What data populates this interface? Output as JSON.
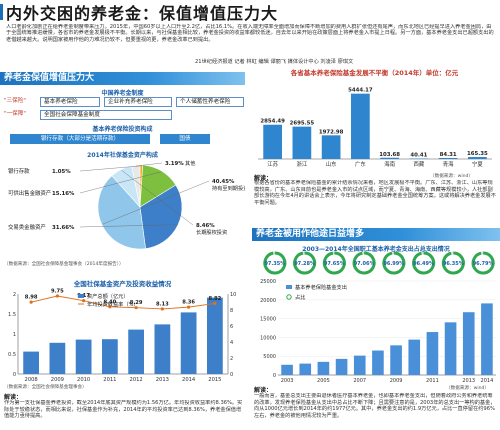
{
  "headline": "内外交困的养老金：保值增值压力大",
  "intro": "人口老龄化加剧正在给养老金制度带来压力。2015年，中国60岁以上人口升至2.2亿，占比16.1%。在收入端无障率全面增加而保障不断增加的费用人群扩张但还有尾声，而东北地区已经提早进入养老金困局，由于全国统筹推进缓慢，各省市的养老金发展极不平衡。长期以来，与社保基金相比较，养老金投资的收益率都较低迷，自去年以来开始在政策层面上将养老金入市提上日程。另一方面，基本养老金支出已超额支出的老借越来越大。说明国家被用作他的力难况仍较不，但要重视的更，养老金改革已到提出。",
  "byline": "21世纪经济报道 记者 林虹 编辑 谭丽飞 媒体设计中心 刘凌泽 廖琪文",
  "left": {
    "band_title": "养老金保值增值压力大",
    "system_title": "中国养老金制度",
    "pillar1_tag": "\"三保险\"",
    "pillar1_boxes": [
      "基本养老保险",
      "企业补充养老保险",
      "个人储蓄性养老保险"
    ],
    "pillar2_tag": "\"一保障\"",
    "pillar2_box": "全国社会保障基金制度",
    "invest_title": "基本养老保险投资构成",
    "invest_boxes": [
      "银行存款（大部分是活期存款）",
      "国债"
    ],
    "pie_title": "2014年社保基金资产构成",
    "pie_slices": [
      {
        "label": "银行存款",
        "value": 1.05,
        "pct": "1.05%",
        "color": "#f2a81e"
      },
      {
        "label": "可供出售金融资产",
        "value": 15.16,
        "pct": "15.16%",
        "color": "#7dbf3f"
      },
      {
        "label": "交易类金融资产",
        "value": 31.66,
        "pct": "31.66%",
        "color": "#3d7fc9"
      },
      {
        "label": "持有至到期投资",
        "value": 40.45,
        "pct": "40.45%",
        "color": "#8fc6ea"
      },
      {
        "label": "长期股权投资",
        "value": 8.46,
        "pct": "8.46%",
        "color": "#c9e6f7"
      },
      {
        "label": "其他",
        "value": 3.19,
        "pct": "3.19%",
        "color": "#e8e8e8"
      }
    ],
    "pie_other_text": "其他",
    "pie_source": "（数据来源：全国社会保障基金理事会（2014年度报告））",
    "combo_title": "全国社保基金资产及投资收益情况",
    "combo_source": "（数据来源：全国社会保障基金理事会）",
    "note_head": "解读：",
    "note": "作为第一支社保基金养老投资，截至2014年底其资产规模约为1.56万亿。年均投资收益率约8.36%。实际处于较稳状态，而相比来说，社保基金作为补充，2014年的平均投资率已达到8.36%，养老金保值增值能力亟待提高。"
  },
  "chart_data": [
    {
      "type": "bar",
      "title": "各省基本养老保险基金发展不平衡（2014年）单位：亿元",
      "categories": [
        "江苏",
        "浙江",
        "山东",
        "广东",
        "海南",
        "西藏",
        "青海",
        "宁夏"
      ],
      "values": [
        2854.49,
        2695.55,
        1972.98,
        5444.17,
        103.68,
        40.41,
        84.31,
        165.35
      ],
      "value_labels": [
        "2854.49",
        "2695.55",
        "1972.98",
        "5444.17",
        "103.68",
        "40.41",
        "84.31",
        "165.35"
      ],
      "ylim": [
        0,
        6000
      ],
      "source": "（数据来源：wind）",
      "note_head": "解读：",
      "note": "根据各省份的基本养老保险基金的累计结余情况来看，地区发展极不平衡。广东、江苏、浙江、山东等规模较高，广东、山东目前也是养老金入市的试点区域，而宁夏、青海、海南、西藏等规模较小，人社部副部长游钧在今年4月的讲话会上表示，今年将研究制定基础养老金全国统筹方案，这或将解决养老金发展不平衡问题。"
    },
    {
      "type": "bar+line",
      "title": "全国社保基金资产及投资收益情况",
      "categories": [
        "2008",
        "2009",
        "2010",
        "2011",
        "2012",
        "2013",
        "2014",
        "2015"
      ],
      "series": [
        {
          "name": "资产总额（亿元）",
          "type": "bar",
          "values": [
            0.56,
            0.78,
            0.86,
            0.87,
            1.11,
            1.24,
            1.54,
            1.91
          ],
          "color": "#3d7fc9"
        },
        {
          "name": "年均投资收益率（%）",
          "type": "line",
          "values": [
            8.98,
            9.75,
            9.17,
            8.4,
            8.29,
            8.13,
            8.36,
            8.82
          ],
          "labels": [
            "8.98",
            "9.75",
            "9.17",
            "8.40",
            "8.29",
            "8.13",
            "8.36",
            "8.82"
          ],
          "color": "#e0711c"
        }
      ],
      "y_left_ticks": [
        "0",
        "0.5",
        "1",
        "1.5",
        "2"
      ],
      "y_right_ticks": [
        "0",
        "2",
        "4",
        "6",
        "8",
        "10"
      ],
      "ylim_left": [
        0,
        2
      ],
      "ylim_right": [
        0,
        10
      ],
      "legend": "top-left"
    },
    {
      "type": "donut-row",
      "title": "2003—2014年全国职工基本养老金支出占总支出情况",
      "categories": [
        "2003",
        "2004",
        "2005",
        "2006",
        "2007",
        "2008",
        "2009",
        "2010"
      ],
      "values": [
        97.35,
        97.28,
        97.65,
        97.06,
        96.99,
        96.49,
        96.35,
        96.79
      ],
      "labels": [
        "97.35%",
        "97.28%",
        "97.65%",
        "97.06%",
        "96.99%",
        "96.49%",
        "96.35%",
        "96.79%"
      ]
    },
    {
      "type": "bar",
      "categories": [
        "2003",
        "2004",
        "2005",
        "2006",
        "2007",
        "2008",
        "2009",
        "2010",
        "2011",
        "2012",
        "2013",
        "2014"
      ],
      "series": [
        {
          "name": "基本养老保险基金支出",
          "values": [
            2716,
            3031,
            3495,
            4287,
            5154,
            6508,
            7887,
            9410,
            11426,
            14009,
            16699,
            19045
          ],
          "color": "#4a90d9"
        },
        {
          "name": "占比",
          "values": [
            97.35,
            97.28,
            97.65,
            97.06,
            96.99,
            96.49,
            96.35,
            96.79,
            96.58,
            96.32,
            96.15,
            96.12
          ],
          "color": "#e8b93a"
        }
      ],
      "y_ticks": [
        "0",
        "5000",
        "10000",
        "15000",
        "20000",
        "25000"
      ],
      "ylim": [
        0,
        25000
      ],
      "legend": "top-left"
    }
  ],
  "right_band_title": "养老金被用作他途日益增多",
  "right_source": "（数据来源：wind）",
  "right_note_head": "解读：",
  "right_note": "一般而言，基金总支出主要由退休者医疗基本养老金，也即基本养老金支出，但随着政府公务和养老统筹的改革，发现养老保险基金从支出中总占比不断下降；且需要注意的是，2003年的总支出一等构的基金，向从1000亿元增长到2014年的约1977亿元。其中，养老金支出的约1.9万亿元，占比一直停留在约96%左右，养老金的被他用情况较为严重。"
}
